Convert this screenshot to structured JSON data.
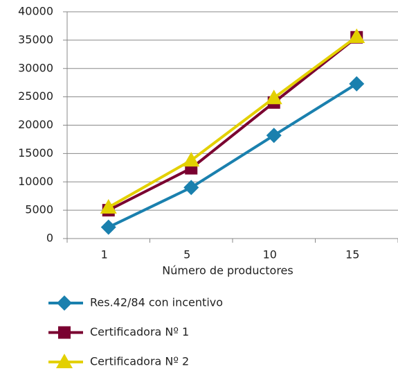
{
  "chart_data": {
    "type": "line",
    "x_label": "Número de productores",
    "categories": [
      "1",
      "5",
      "10",
      "15"
    ],
    "series": [
      {
        "name": "Res.42/84 con incentivo",
        "color": "#1a80ae",
        "marker": "diamond",
        "values": [
          2000,
          9000,
          18200,
          27300
        ]
      },
      {
        "name": "Certificadora Nº 1",
        "color": "#7a0030",
        "marker": "square",
        "values": [
          5000,
          12400,
          24000,
          35500
        ]
      },
      {
        "name": "Certificadora Nº 2",
        "color": "#e3d000",
        "marker": "triangle",
        "values": [
          5500,
          13800,
          24800,
          35600
        ]
      }
    ],
    "ylim": [
      0,
      40000
    ],
    "yticks": [
      0,
      5000,
      10000,
      15000,
      20000,
      25000,
      30000,
      35000,
      40000
    ],
    "grid": true,
    "legend": "bottom"
  }
}
